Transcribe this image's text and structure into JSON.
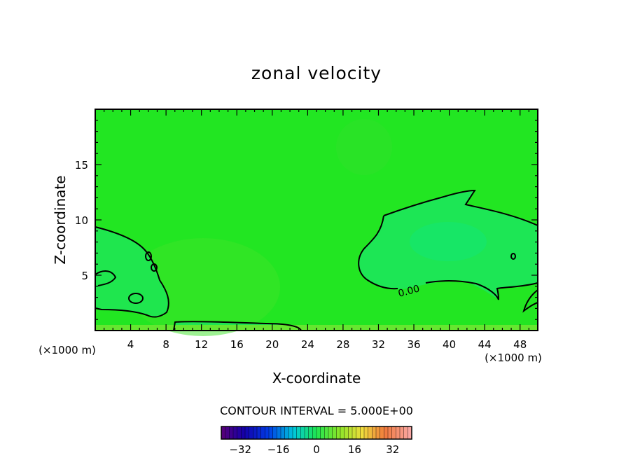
{
  "chart_data": {
    "type": "contour",
    "title": "zonal velocity",
    "xlabel": "X-coordinate",
    "ylabel": "Z-coordinate",
    "x_unit_left": "(×1000 m)",
    "x_unit_right": "(×1000 m)",
    "xlim": [
      0,
      50
    ],
    "ylim": [
      0,
      20
    ],
    "x_ticks": [
      4,
      8,
      12,
      16,
      20,
      24,
      28,
      32,
      36,
      40,
      44,
      48
    ],
    "y_ticks": [
      5,
      10,
      15
    ],
    "contour_interval_text": "CONTOUR INTERVAL = 5.000E+00",
    "contour_label": "0.00",
    "colorbar": {
      "min": -40,
      "max": 40,
      "tick_values": [
        -32,
        -16,
        0,
        16,
        32
      ],
      "tick_labels": [
        "−32",
        "−16",
        "0",
        "16",
        "32"
      ]
    },
    "colors": {
      "field": "#22e622",
      "zero_contour_region": "#1ee65a",
      "near_surface": "#66e630",
      "contour_line": "#000000"
    }
  }
}
